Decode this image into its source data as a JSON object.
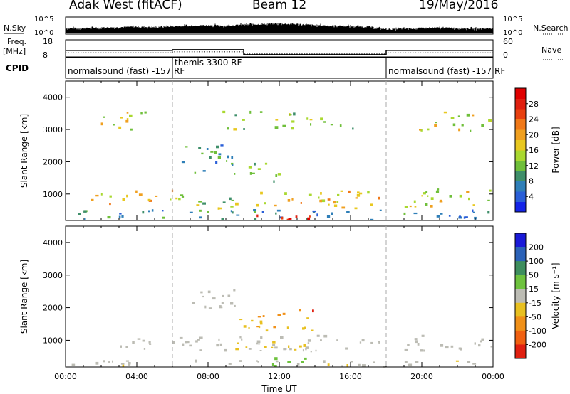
{
  "header": {
    "station": "Adak West (fitACF)",
    "beam": "Beam 12",
    "date": "19/May/2016"
  },
  "chart_data": [
    {
      "type": "line",
      "name": "noise",
      "left_label": "N.Sky",
      "right_label": "N.Search",
      "y_ticks_left": [
        "10^5",
        "10^0"
      ],
      "y_ticks_right": [
        "10^5",
        "10^0"
      ],
      "series": [
        {
          "name": "N.Sky",
          "level_by_hour": [
            0.45,
            0.45,
            0.5,
            0.55,
            0.6,
            0.55,
            0.65,
            0.7,
            0.75,
            0.7,
            0.8,
            0.85,
            0.9,
            0.85,
            0.75,
            0.7,
            0.65,
            0.6,
            0.35,
            0.4,
            0.45,
            0.5,
            0.45,
            0.4,
            0.45
          ]
        },
        {
          "name": "N.Search",
          "style": "dotted"
        }
      ]
    },
    {
      "type": "line",
      "name": "frequency",
      "left_label": "Freq.",
      "left_unit": "[MHz]",
      "right_label": "Nave",
      "y_ticks_left": [
        "18",
        "8"
      ],
      "y_ticks_right": [
        "60",
        "0"
      ],
      "series": [
        {
          "name": "Freq.",
          "points": [
            [
              0,
              11.8
            ],
            [
              6,
              11.8
            ],
            [
              6,
              12.2
            ],
            [
              10,
              12.2
            ],
            [
              10,
              9.3
            ],
            [
              18,
              9.3
            ],
            [
              18,
              11.8
            ],
            [
              24,
              11.8
            ]
          ]
        },
        {
          "name": "Nave",
          "style": "dotted",
          "points": [
            [
              0,
              14
            ],
            [
              6,
              14
            ],
            [
              6,
              18
            ],
            [
              10,
              18
            ],
            [
              10,
              10
            ],
            [
              18,
              10
            ],
            [
              18,
              14
            ],
            [
              24,
              14
            ]
          ]
        }
      ]
    },
    {
      "type": "timeline",
      "name": "cpid",
      "label": "CPID",
      "segments": [
        {
          "start": 0,
          "end": 6,
          "text": "normalsound (fast) -157 RF"
        },
        {
          "start": 6,
          "end": 18,
          "text": "themis 3300 RF"
        },
        {
          "start": 18,
          "end": 24,
          "text": "normalsound (fast) -157 RF"
        }
      ],
      "dividers": [
        6,
        18
      ]
    },
    {
      "type": "heatmap",
      "name": "power",
      "ylabel": "Slant Range [km]",
      "xlim": [
        0,
        24
      ],
      "ylim": [
        180,
        4500
      ],
      "y_ticks": [
        1000,
        2000,
        3000,
        4000
      ],
      "colorbar": {
        "label": "Power [dB]",
        "ticks": [
          "4",
          "8",
          "12",
          "16",
          "20",
          "24",
          "28"
        ],
        "range": [
          0,
          30
        ],
        "colors": [
          "#1424e8",
          "#2a5fd8",
          "#2f7fb8",
          "#3f8f6a",
          "#6fbf3a",
          "#a9d830",
          "#e8c820",
          "#f0a020",
          "#f07818",
          "#e84010",
          "#e02010",
          "#e00000"
        ]
      },
      "regions": [
        {
          "t0": 6.4,
          "t1": 9.6,
          "r0": 1950,
          "r1": 2550,
          "power": 9
        },
        {
          "t0": 7.0,
          "t1": 9.5,
          "r0": 1600,
          "r1": 2000,
          "power": 8
        },
        {
          "t0": 10.0,
          "t1": 11.5,
          "r0": 1700,
          "r1": 2050,
          "power": 11
        },
        {
          "t0": 10.2,
          "t1": 13.2,
          "r0": 1300,
          "r1": 1650,
          "power": 13
        },
        {
          "t0": 0.8,
          "t1": 6.0,
          "r0": 650,
          "r1": 1100,
          "power": 18
        },
        {
          "t0": 6.0,
          "t1": 10.0,
          "r0": 550,
          "r1": 1050,
          "power": 12
        },
        {
          "t0": 10.0,
          "t1": 17.8,
          "r0": 550,
          "r1": 1100,
          "power": 17
        },
        {
          "t0": 18.5,
          "t1": 24.0,
          "r0": 600,
          "r1": 1150,
          "power": 15
        },
        {
          "t0": 0.2,
          "t1": 24.0,
          "r0": 200,
          "r1": 500,
          "power": 8
        },
        {
          "t0": 9.0,
          "t1": 16.0,
          "r0": 190,
          "r1": 330,
          "power": 27
        },
        {
          "t0": 1.6,
          "t1": 4.8,
          "r0": 2950,
          "r1": 3600,
          "power": 14
        },
        {
          "t0": 8.8,
          "t1": 16.2,
          "r0": 3000,
          "r1": 3550,
          "power": 12
        },
        {
          "t0": 19.5,
          "t1": 23.8,
          "r0": 2900,
          "r1": 3550,
          "power": 15
        }
      ]
    },
    {
      "type": "heatmap",
      "name": "velocity",
      "ylabel": "Slant Range [km]",
      "xlabel": "Time UT",
      "x_ticks": [
        "00:00",
        "04:00",
        "08:00",
        "12:00",
        "16:00",
        "20:00",
        "00:00"
      ],
      "xlim": [
        0,
        24
      ],
      "ylim": [
        180,
        4500
      ],
      "y_ticks": [
        1000,
        2000,
        3000,
        4000
      ],
      "colorbar": {
        "label": "Velocity [m s⁻¹]",
        "ticks": [
          "200",
          "100",
          "50",
          "15",
          "-15",
          "-50",
          "-100",
          "-200"
        ],
        "range": [
          -250,
          250
        ],
        "colors": [
          "#1a1ad8",
          "#2b62b8",
          "#3e8e5e",
          "#6ec23e",
          "#bcbcb4",
          "#e8c020",
          "#f09018",
          "#f06010",
          "#e02010"
        ]
      },
      "regions": [
        {
          "t0": 6.4,
          "t1": 9.6,
          "r0": 1950,
          "r1": 2550,
          "velocity": 0
        },
        {
          "t0": 10.6,
          "t1": 13.2,
          "r0": 1700,
          "r1": 1950,
          "velocity": -110
        },
        {
          "t0": 13.0,
          "t1": 14.2,
          "r0": 1850,
          "r1": 2050,
          "velocity": -220
        },
        {
          "t0": 9.5,
          "t1": 14.0,
          "r0": 1250,
          "r1": 1700,
          "velocity": -70
        },
        {
          "t0": 3.0,
          "t1": 18.0,
          "r0": 650,
          "r1": 1150,
          "velocity": 0
        },
        {
          "t0": 18.2,
          "t1": 24.0,
          "r0": 650,
          "r1": 1150,
          "velocity": 0
        },
        {
          "t0": 9.5,
          "t1": 13.5,
          "r0": 700,
          "r1": 1000,
          "velocity": -60
        },
        {
          "t0": 11.2,
          "t1": 14.0,
          "r0": 200,
          "r1": 500,
          "velocity": 60
        },
        {
          "t0": 0.2,
          "t1": 24.0,
          "r0": 190,
          "r1": 380,
          "velocity": -20
        }
      ]
    }
  ]
}
